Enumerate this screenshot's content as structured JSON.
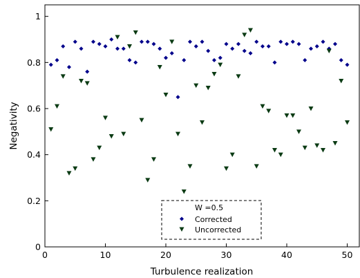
{
  "chart_data": {
    "type": "scatter",
    "title": "",
    "xlabel": "Turbulence realization",
    "ylabel": "Negativity",
    "xlim": [
      0,
      52
    ],
    "ylim": [
      0,
      1.05
    ],
    "xticks": [
      0,
      10,
      20,
      30,
      40,
      50
    ],
    "yticks": [
      0,
      0.2,
      0.4,
      0.6,
      0.8,
      1
    ],
    "xtick_labels": [
      "0",
      "10",
      "20",
      "30",
      "40",
      "50"
    ],
    "ytick_labels": [
      "0",
      "0.2",
      "0.4",
      "0.6",
      "0.8",
      "1"
    ],
    "grid": false,
    "legend": {
      "title": "W =0.5",
      "placement": "bottom-center"
    },
    "series": [
      {
        "name": "Corrected",
        "marker": "diamond",
        "color": "#00008b",
        "x": [
          1,
          2,
          3,
          4,
          5,
          6,
          7,
          8,
          9,
          10,
          11,
          12,
          13,
          14,
          15,
          16,
          17,
          18,
          19,
          20,
          21,
          22,
          23,
          24,
          25,
          26,
          27,
          28,
          29,
          30,
          31,
          32,
          33,
          34,
          35,
          36,
          37,
          38,
          39,
          40,
          41,
          42,
          43,
          44,
          45,
          46,
          47,
          48,
          49,
          50
        ],
        "y": [
          0.79,
          0.81,
          0.87,
          0.78,
          0.89,
          0.86,
          0.76,
          0.89,
          0.88,
          0.87,
          0.9,
          0.86,
          0.86,
          0.81,
          0.8,
          0.89,
          0.89,
          0.88,
          0.86,
          0.82,
          0.84,
          0.65,
          0.81,
          0.89,
          0.87,
          0.89,
          0.85,
          0.81,
          0.82,
          0.88,
          0.86,
          0.88,
          0.85,
          0.84,
          0.89,
          0.87,
          0.87,
          0.8,
          0.89,
          0.88,
          0.89,
          0.88,
          0.81,
          0.86,
          0.87,
          0.89,
          0.86,
          0.88,
          0.81,
          0.79
        ]
      },
      {
        "name": "Uncorrected",
        "marker": "triangle-down",
        "color": "#0b3b14",
        "x": [
          1,
          2,
          3,
          4,
          5,
          6,
          7,
          8,
          9,
          10,
          11,
          12,
          13,
          14,
          15,
          16,
          17,
          18,
          19,
          20,
          21,
          22,
          23,
          24,
          25,
          26,
          27,
          28,
          29,
          30,
          31,
          32,
          33,
          34,
          35,
          36,
          37,
          38,
          39,
          40,
          41,
          42,
          43,
          44,
          45,
          46,
          47,
          48,
          49,
          50
        ],
        "y": [
          0.51,
          0.61,
          0.74,
          0.32,
          0.34,
          0.72,
          0.71,
          0.38,
          0.43,
          0.56,
          0.48,
          0.91,
          0.49,
          0.87,
          0.93,
          0.55,
          0.29,
          0.38,
          0.78,
          0.66,
          0.89,
          0.49,
          0.24,
          0.35,
          0.7,
          0.54,
          0.69,
          0.75,
          0.79,
          0.34,
          0.4,
          0.74,
          0.92,
          0.94,
          0.35,
          0.61,
          0.59,
          0.42,
          0.4,
          0.57,
          0.57,
          0.5,
          0.43,
          0.6,
          0.44,
          0.42,
          0.85,
          0.45,
          0.72,
          0.54
        ]
      }
    ]
  }
}
